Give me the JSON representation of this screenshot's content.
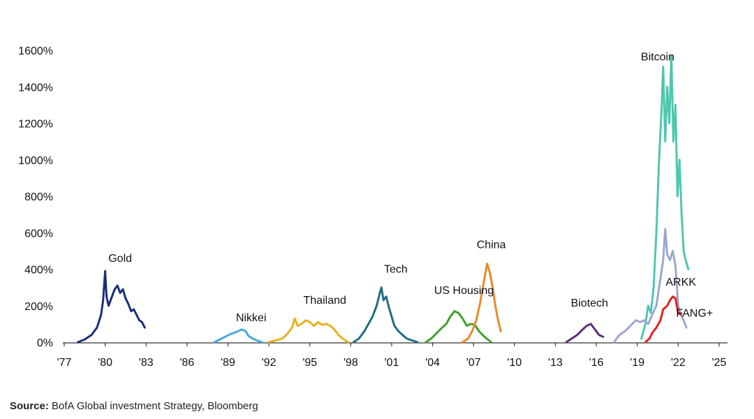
{
  "chart_data": {
    "type": "line",
    "title": "",
    "xlabel": "",
    "ylabel": "",
    "x_tick_labels": [
      "'77",
      "'80",
      "'83",
      "'86",
      "'89",
      "'92",
      "'95",
      "'98",
      "'01",
      "'04",
      "'07",
      "'10",
      "'13",
      "'16",
      "'19",
      "'22",
      "'25"
    ],
    "x_ticks": [
      1977,
      1980,
      1983,
      1986,
      1989,
      1992,
      1995,
      1998,
      2001,
      2004,
      2007,
      2010,
      2013,
      2016,
      2019,
      2022,
      2025
    ],
    "xlim": [
      1977,
      2026
    ],
    "y_tick_labels": [
      "0%",
      "200%",
      "400%",
      "600%",
      "800%",
      "1000%",
      "1200%",
      "1400%",
      "1600%"
    ],
    "y_ticks": [
      0,
      200,
      400,
      600,
      800,
      1000,
      1200,
      1400,
      1600
    ],
    "ylim": [
      0,
      1600
    ],
    "grid": false,
    "series": [
      {
        "name": "Gold",
        "color": "#1a2f7a",
        "label_at": [
          1981.1,
          440
        ],
        "points": [
          [
            1978.0,
            0
          ],
          [
            1978.5,
            15
          ],
          [
            1979.0,
            40
          ],
          [
            1979.4,
            80
          ],
          [
            1979.7,
            150
          ],
          [
            1979.85,
            230
          ],
          [
            1980.0,
            390
          ],
          [
            1980.1,
            250
          ],
          [
            1980.25,
            200
          ],
          [
            1980.45,
            240
          ],
          [
            1980.7,
            290
          ],
          [
            1980.9,
            310
          ],
          [
            1981.1,
            270
          ],
          [
            1981.3,
            290
          ],
          [
            1981.5,
            240
          ],
          [
            1981.7,
            210
          ],
          [
            1981.9,
            170
          ],
          [
            1982.1,
            180
          ],
          [
            1982.3,
            150
          ],
          [
            1982.5,
            120
          ],
          [
            1982.7,
            110
          ],
          [
            1982.9,
            80
          ]
        ]
      },
      {
        "name": "Nikkei",
        "color": "#4aa8e0",
        "label_at": [
          1990.7,
          115
        ],
        "points": [
          [
            1988.0,
            0
          ],
          [
            1988.4,
            15
          ],
          [
            1988.8,
            30
          ],
          [
            1989.2,
            45
          ],
          [
            1989.6,
            55
          ],
          [
            1990.0,
            70
          ],
          [
            1990.3,
            60
          ],
          [
            1990.5,
            35
          ],
          [
            1990.8,
            20
          ],
          [
            1991.1,
            10
          ],
          [
            1991.5,
            0
          ]
        ]
      },
      {
        "name": "Thailand",
        "color": "#e8b020",
        "label_at": [
          1996.1,
          210
        ],
        "points": [
          [
            1992.0,
            0
          ],
          [
            1992.5,
            10
          ],
          [
            1993.0,
            20
          ],
          [
            1993.4,
            50
          ],
          [
            1993.7,
            80
          ],
          [
            1993.9,
            130
          ],
          [
            1994.1,
            90
          ],
          [
            1994.4,
            100
          ],
          [
            1994.7,
            120
          ],
          [
            1995.0,
            110
          ],
          [
            1995.3,
            90
          ],
          [
            1995.6,
            110
          ],
          [
            1995.9,
            95
          ],
          [
            1996.2,
            100
          ],
          [
            1996.5,
            90
          ],
          [
            1996.8,
            70
          ],
          [
            1997.1,
            40
          ],
          [
            1997.4,
            20
          ],
          [
            1997.8,
            0
          ]
        ]
      },
      {
        "name": "Tech",
        "color": "#1f6e85",
        "label_at": [
          2001.3,
          380
        ],
        "points": [
          [
            1998.2,
            0
          ],
          [
            1998.6,
            20
          ],
          [
            1999.0,
            60
          ],
          [
            1999.3,
            100
          ],
          [
            1999.6,
            140
          ],
          [
            1999.9,
            200
          ],
          [
            2000.1,
            260
          ],
          [
            2000.25,
            300
          ],
          [
            2000.4,
            230
          ],
          [
            2000.6,
            250
          ],
          [
            2000.8,
            190
          ],
          [
            2001.0,
            140
          ],
          [
            2001.2,
            90
          ],
          [
            2001.5,
            60
          ],
          [
            2001.8,
            40
          ],
          [
            2002.1,
            20
          ],
          [
            2002.5,
            10
          ],
          [
            2002.9,
            0
          ]
        ]
      },
      {
        "name": "US Housing",
        "color": "#40a02b",
        "label_at": [
          2006.3,
          265
        ],
        "points": [
          [
            2003.5,
            0
          ],
          [
            2003.9,
            20
          ],
          [
            2004.3,
            50
          ],
          [
            2004.7,
            80
          ],
          [
            2005.0,
            100
          ],
          [
            2005.3,
            140
          ],
          [
            2005.6,
            170
          ],
          [
            2005.9,
            160
          ],
          [
            2006.2,
            130
          ],
          [
            2006.5,
            90
          ],
          [
            2006.8,
            100
          ],
          [
            2007.1,
            95
          ],
          [
            2007.4,
            60
          ],
          [
            2007.8,
            30
          ],
          [
            2008.3,
            0
          ]
        ]
      },
      {
        "name": "China",
        "color": "#e88a2a",
        "label_at": [
          2008.3,
          515
        ],
        "points": [
          [
            2006.2,
            0
          ],
          [
            2006.6,
            20
          ],
          [
            2006.9,
            60
          ],
          [
            2007.2,
            120
          ],
          [
            2007.5,
            220
          ],
          [
            2007.8,
            350
          ],
          [
            2008.0,
            430
          ],
          [
            2008.2,
            380
          ],
          [
            2008.4,
            300
          ],
          [
            2008.6,
            200
          ],
          [
            2008.8,
            120
          ],
          [
            2009.0,
            60
          ]
        ]
      },
      {
        "name": "Biotech",
        "color": "#5e2d7a",
        "label_at": [
          2015.5,
          195
        ],
        "points": [
          [
            2013.8,
            0
          ],
          [
            2014.2,
            20
          ],
          [
            2014.6,
            40
          ],
          [
            2015.0,
            70
          ],
          [
            2015.3,
            90
          ],
          [
            2015.6,
            100
          ],
          [
            2015.8,
            80
          ],
          [
            2016.0,
            60
          ],
          [
            2016.2,
            40
          ],
          [
            2016.5,
            30
          ]
        ]
      },
      {
        "name": "Bitcoin",
        "color": "#4ec7b0",
        "label_at": [
          2020.5,
          1545
        ],
        "points": [
          [
            2019.3,
            20
          ],
          [
            2019.6,
            100
          ],
          [
            2019.8,
            200
          ],
          [
            2020.0,
            160
          ],
          [
            2020.2,
            300
          ],
          [
            2020.4,
            600
          ],
          [
            2020.6,
            1000
          ],
          [
            2020.8,
            1300
          ],
          [
            2020.9,
            1510
          ],
          [
            2021.05,
            1100
          ],
          [
            2021.2,
            1400
          ],
          [
            2021.35,
            1200
          ],
          [
            2021.5,
            1570
          ],
          [
            2021.65,
            1100
          ],
          [
            2021.8,
            1300
          ],
          [
            2021.95,
            800
          ],
          [
            2022.1,
            1000
          ],
          [
            2022.25,
            700
          ],
          [
            2022.4,
            500
          ],
          [
            2022.55,
            450
          ],
          [
            2022.75,
            400
          ]
        ]
      },
      {
        "name": "ARKK",
        "color": "#9aa7cf",
        "label_at": [
          2022.2,
          310
        ],
        "points": [
          [
            2017.3,
            0
          ],
          [
            2017.7,
            40
          ],
          [
            2018.1,
            60
          ],
          [
            2018.5,
            90
          ],
          [
            2018.9,
            120
          ],
          [
            2019.2,
            110
          ],
          [
            2019.5,
            120
          ],
          [
            2019.8,
            100
          ],
          [
            2020.1,
            150
          ],
          [
            2020.4,
            200
          ],
          [
            2020.7,
            350
          ],
          [
            2020.9,
            450
          ],
          [
            2021.05,
            620
          ],
          [
            2021.2,
            480
          ],
          [
            2021.4,
            450
          ],
          [
            2021.6,
            500
          ],
          [
            2021.8,
            420
          ],
          [
            2022.0,
            200
          ],
          [
            2022.2,
            150
          ],
          [
            2022.4,
            120
          ],
          [
            2022.6,
            80
          ]
        ]
      },
      {
        "name": "FANG+",
        "color": "#e32222",
        "label_at": [
          2023.2,
          140
        ],
        "points": [
          [
            2019.6,
            0
          ],
          [
            2019.9,
            20
          ],
          [
            2020.1,
            50
          ],
          [
            2020.4,
            80
          ],
          [
            2020.7,
            120
          ],
          [
            2020.9,
            180
          ],
          [
            2021.2,
            200
          ],
          [
            2021.4,
            230
          ],
          [
            2021.6,
            250
          ],
          [
            2021.8,
            240
          ],
          [
            2022.0,
            160
          ],
          [
            2022.2,
            150
          ]
        ]
      }
    ]
  },
  "source_label": "Source:",
  "source_text": " BofA Global investment Strategy, Bloomberg"
}
